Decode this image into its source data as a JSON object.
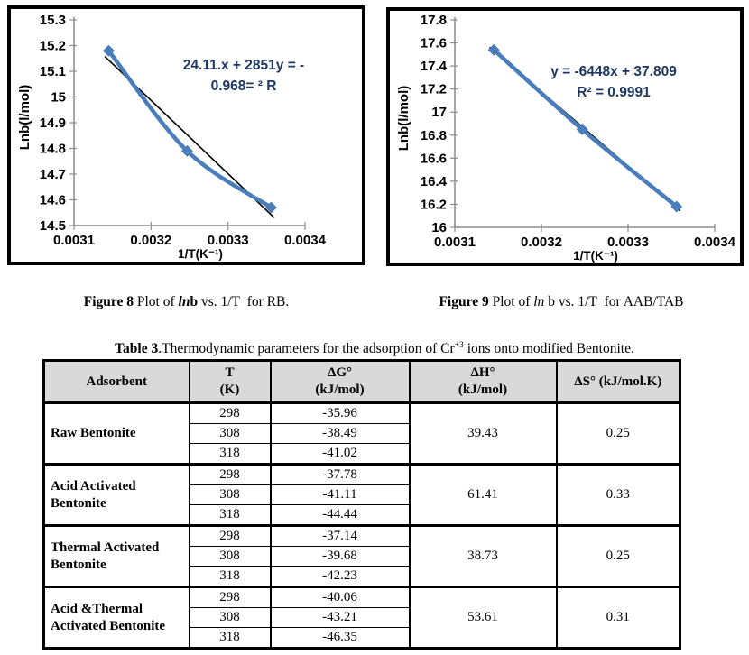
{
  "captions": {
    "figure8": [
      {
        "t": "Figure 8",
        "b": 1
      },
      {
        "t": " Plot of "
      },
      {
        "t": "ln",
        "b": 1,
        "i": 1
      },
      {
        "t": "b",
        "b": 1
      },
      {
        "t": " vs. 1/T  for RB."
      }
    ],
    "figure9": [
      {
        "t": "Figure 9",
        "b": 1
      },
      {
        "t": " Plot of "
      },
      {
        "t": "ln",
        "i": 1
      },
      {
        "t": " b vs. 1/T  for AAB/TAB"
      }
    ]
  },
  "table": {
    "caption": [
      {
        "t": "Table 3",
        "b": 1
      },
      {
        "t": ".Thermodynamic parameters for the adsorption of Cr"
      },
      {
        "t": "+3",
        "sup": 1
      },
      {
        "t": " ions onto modified Bentonite."
      }
    ],
    "headers": [
      [
        "Adsorbent"
      ],
      [
        "T",
        "(K)"
      ],
      [
        "ΔG°",
        "(kJ/mol)"
      ],
      [
        "ΔH°",
        "(kJ/mol)"
      ],
      [
        "ΔS° (kJ/mol.K)"
      ]
    ],
    "groups": [
      {
        "adsorbent": "Raw Bentonite",
        "temps": [
          "298",
          "308",
          "318"
        ],
        "dg": [
          "-35.96",
          "-38.49",
          "-41.02"
        ],
        "dh": "39.43",
        "ds": "0.25"
      },
      {
        "adsorbent": "Acid Activated\nBentonite",
        "temps": [
          "298",
          "308",
          "318"
        ],
        "dg": [
          "-37.78",
          "-41.11",
          "-44.44"
        ],
        "dh": "61.41",
        "ds": "0.33"
      },
      {
        "adsorbent": "Thermal Activated\nBentonite",
        "temps": [
          "298",
          "308",
          "318"
        ],
        "dg": [
          "-37.14",
          "-39.68",
          "-42.23"
        ],
        "dh": "38.73",
        "ds": "0.25"
      },
      {
        "adsorbent": "Acid &Thermal\nActivated Bentonite",
        "temps": [
          "298",
          "308",
          "318"
        ],
        "dg": [
          "-40.06",
          "-43.21",
          "-46.35"
        ],
        "dh": "53.61",
        "ds": "0.31"
      }
    ]
  },
  "chart_data": [
    {
      "figure": "Figure 8",
      "type": "line",
      "title": "",
      "xlabel": "1/T(K⁻¹)",
      "ylabel": "Lnb(l/mol)",
      "x": [
        0.003145,
        0.003247,
        0.003356
      ],
      "y": [
        15.18,
        14.79,
        14.57
      ],
      "xlim": [
        0.0031,
        0.0034
      ],
      "ylim": [
        14.5,
        15.3
      ],
      "xticks": [
        0.0031,
        0.0032,
        0.0033,
        0.0034
      ],
      "ytick_step": 0.1,
      "annotation_lines": [
        "24.11.x + 2851y = -",
        "0.968= ² R"
      ],
      "trendline": {
        "slope": -2851,
        "intercept": 24.11,
        "x_start": 0.00314,
        "x_end": 0.00336
      },
      "series_color": "#4a7ebb",
      "trend_color": "#000000",
      "annotation_color": "#1f3864",
      "grid": false,
      "legend": "none"
    },
    {
      "figure": "Figure 9",
      "type": "line",
      "title": "",
      "xlabel": "1/T(K⁻¹)",
      "ylabel": "Lnb(l/mol)",
      "x": [
        0.003145,
        0.003247,
        0.003356
      ],
      "y": [
        17.54,
        16.85,
        16.18
      ],
      "xlim": [
        0.0031,
        0.0034
      ],
      "ylim": [
        16,
        17.8
      ],
      "xticks": [
        0.0031,
        0.0032,
        0.0033,
        0.0034
      ],
      "ytick_step": 0.2,
      "annotation_lines": [
        "y = -6448x + 37.809",
        "R² = 0.9991"
      ],
      "trendline": {
        "slope": -6448,
        "intercept": 37.809,
        "x_start": 0.00314,
        "x_end": 0.00336
      },
      "series_color": "#4a7ebb",
      "trend_color": "#000000",
      "annotation_color": "#1f3864",
      "grid": false,
      "legend": "none"
    }
  ]
}
